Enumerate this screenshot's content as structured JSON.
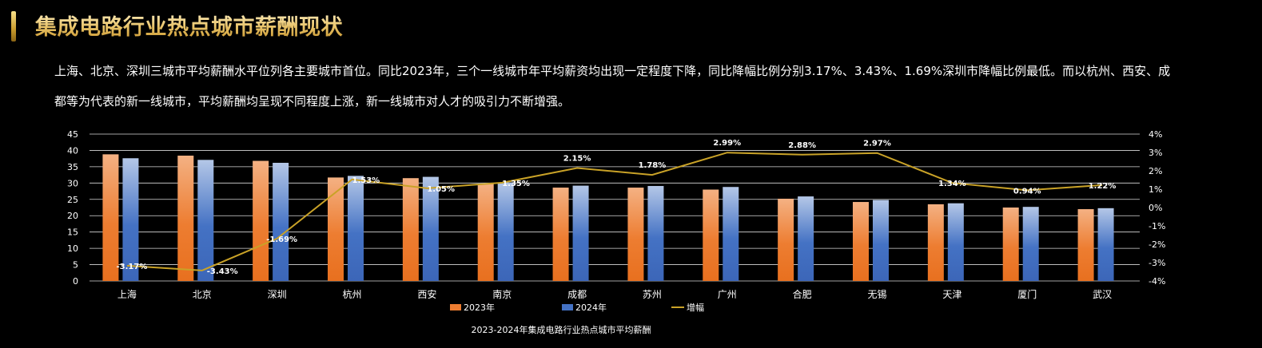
{
  "header": {
    "title": "集成电路行业热点城市薪酬现状"
  },
  "summary": "上海、北京、深圳三城市平均薪酬水平位列各主要城市首位。同比2023年，三个一线城市年平均薪资均出现一定程度下降，同比降幅比例分别3.17%、3.43%、1.69%深圳市降幅比例最低。而以杭州、西安、成都等为代表的新一线城市，平均薪酬均呈现不同程度上涨，新一线城市对人才的吸引力不断增强。",
  "chart_data": {
    "type": "bar",
    "title": "2023-2024年集成电路行业热点城市平均薪酬",
    "categories": [
      "上海",
      "北京",
      "深圳",
      "杭州",
      "西安",
      "南京",
      "成都",
      "苏州",
      "广州",
      "合肥",
      "无锡",
      "天津",
      "厦门",
      "武汉"
    ],
    "series": [
      {
        "name": "2023年",
        "type": "bar",
        "axis": "left",
        "color": "#ed7d31",
        "values": [
          38.8,
          38.4,
          36.8,
          31.7,
          31.5,
          29.8,
          28.6,
          28.6,
          28.0,
          25.2,
          24.2,
          23.5,
          22.5,
          22.0
        ]
      },
      {
        "name": "2024年",
        "type": "bar",
        "axis": "left",
        "color": "#4472c4",
        "values": [
          37.6,
          37.1,
          36.2,
          32.2,
          31.9,
          30.2,
          29.2,
          29.1,
          28.8,
          25.9,
          24.8,
          23.8,
          22.7,
          22.3
        ]
      },
      {
        "name": "增幅",
        "type": "line",
        "axis": "right",
        "color": "#c9a227",
        "values": [
          -3.17,
          -3.43,
          -1.69,
          1.53,
          1.05,
          1.35,
          2.15,
          1.78,
          2.99,
          2.88,
          2.97,
          1.34,
          0.94,
          1.22
        ],
        "labels": [
          "-3.17%",
          "-3.43%",
          "-1.69%",
          "1.53%",
          "1.05%",
          "1.35%",
          "2.15%",
          "1.78%",
          "2.99%",
          "2.88%",
          "2.97%",
          "1.34%",
          "0.94%",
          "1.22%"
        ]
      }
    ],
    "y_left": {
      "min": 0,
      "max": 45,
      "step": 5,
      "ticks": [
        "0",
        "5",
        "10",
        "15",
        "20",
        "25",
        "30",
        "35",
        "40",
        "45"
      ]
    },
    "y_right": {
      "min": -4,
      "max": 4,
      "step": 1,
      "ticks": [
        "-4%",
        "-3%",
        "-2%",
        "-1%",
        "0%",
        "1%",
        "2%",
        "3%",
        "4%"
      ]
    },
    "grid": true,
    "legend_position": "bottom"
  }
}
